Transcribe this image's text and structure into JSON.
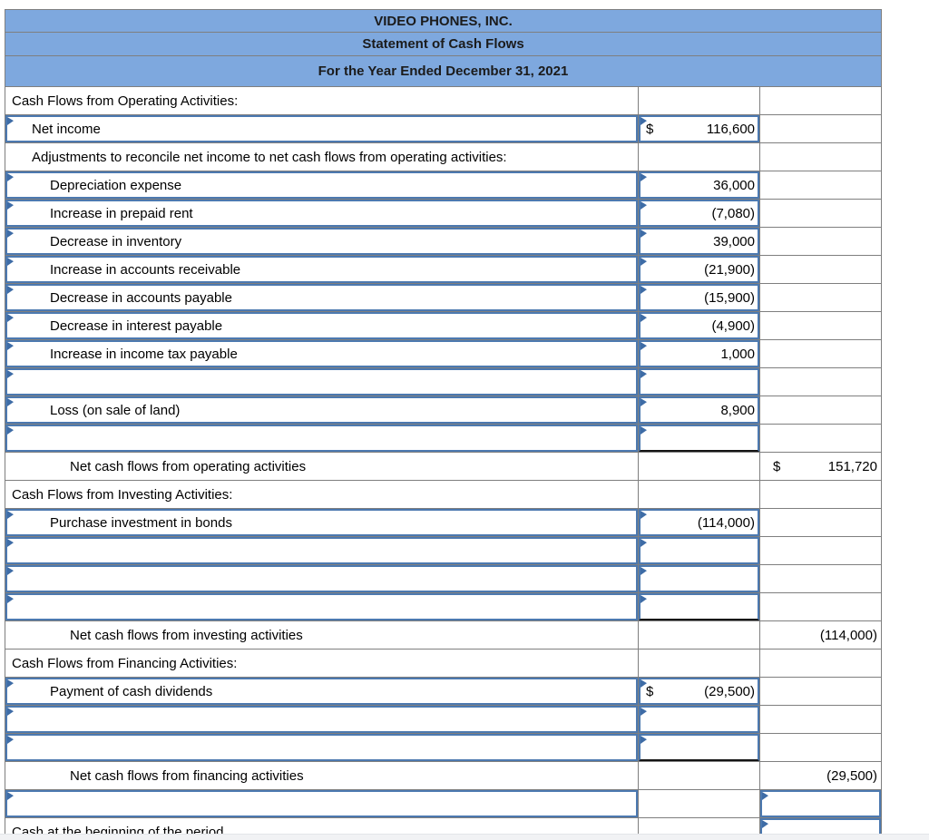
{
  "title_rows": [
    "VIDEO PHONES, INC.",
    "Statement of Cash Flows",
    "For the Year Ended December 31, 2021"
  ],
  "colors": {
    "header_bg": "#7EA8DE",
    "input_border_blue": "#4C79B0",
    "marker_blue": "#3E6CA6",
    "grid_gray": "#7f7f7f",
    "total_rule_black": "#141414",
    "footer_strip": "#F1F2F4"
  },
  "rows": [
    {
      "label": "Cash Flows from Operating Activities:",
      "indent": 0,
      "label_input": false,
      "c2": null,
      "c3": null
    },
    {
      "label": "Net income",
      "indent": 1,
      "label_input": true,
      "c2": {
        "input": true,
        "currency": "$",
        "value": "116,600"
      },
      "c3": null
    },
    {
      "label": "Adjustments to reconcile net income to net cash flows from operating activities:",
      "indent": 1,
      "label_input": false,
      "c2": null,
      "c3": null
    },
    {
      "label": "Depreciation expense",
      "indent": 2,
      "label_input": true,
      "c2": {
        "input": true,
        "value": "36,000"
      },
      "c3": null
    },
    {
      "label": "Increase in prepaid rent",
      "indent": 2,
      "label_input": true,
      "c2": {
        "input": true,
        "value": "(7,080)"
      },
      "c3": null
    },
    {
      "label": "Decrease in inventory",
      "indent": 2,
      "label_input": true,
      "c2": {
        "input": true,
        "value": "39,000"
      },
      "c3": null
    },
    {
      "label": "Increase in accounts receivable",
      "indent": 2,
      "label_input": true,
      "c2": {
        "input": true,
        "value": "(21,900)"
      },
      "c3": null
    },
    {
      "label": "Decrease in accounts payable",
      "indent": 2,
      "label_input": true,
      "c2": {
        "input": true,
        "value": "(15,900)"
      },
      "c3": null
    },
    {
      "label": "Decrease in interest payable",
      "indent": 2,
      "label_input": true,
      "c2": {
        "input": true,
        "value": "(4,900)"
      },
      "c3": null
    },
    {
      "label": "Increase in income tax payable",
      "indent": 2,
      "label_input": true,
      "c2": {
        "input": true,
        "value": "1,000"
      },
      "c3": null
    },
    {
      "label": "",
      "indent": 2,
      "label_input": true,
      "c2": {
        "input": true
      },
      "c3": null
    },
    {
      "label": "Loss (on sale of land)",
      "indent": 2,
      "label_input": true,
      "c2": {
        "input": true,
        "value": "8,900"
      },
      "c3": null
    },
    {
      "label": "",
      "indent": 2,
      "label_input": true,
      "c2": {
        "input": true,
        "black_bottom": true
      },
      "c3": null
    },
    {
      "label": "Net cash flows from operating activities",
      "indent": 3,
      "label_input": false,
      "c2": null,
      "c3": {
        "currency": "$",
        "value": "151,720"
      }
    },
    {
      "label": "Cash Flows from Investing Activities:",
      "indent": 0,
      "label_input": false,
      "c2": null,
      "c3": null
    },
    {
      "label": "Purchase investment in bonds",
      "indent": 2,
      "label_input": true,
      "c2": {
        "input": true,
        "value": "(114,000)"
      },
      "c3": null
    },
    {
      "label": "",
      "indent": 2,
      "label_input": true,
      "c2": {
        "input": true
      },
      "c3": null
    },
    {
      "label": "",
      "indent": 2,
      "label_input": true,
      "c2": {
        "input": true
      },
      "c3": null
    },
    {
      "label": "",
      "indent": 2,
      "label_input": true,
      "c2": {
        "input": true,
        "black_bottom": true
      },
      "c3": null
    },
    {
      "label": "Net cash flows from investing activities",
      "indent": 3,
      "label_input": false,
      "c2": null,
      "c3": {
        "value": "(114,000)"
      }
    },
    {
      "label": "Cash Flows from Financing Activities:",
      "indent": 0,
      "label_input": false,
      "c2": null,
      "c3": null
    },
    {
      "label": "Payment of cash dividends",
      "indent": 2,
      "label_input": true,
      "c2": {
        "input": true,
        "currency": "$",
        "value": "(29,500)"
      },
      "c3": null
    },
    {
      "label": "",
      "indent": 2,
      "label_input": true,
      "c2": {
        "input": true
      },
      "c3": null
    },
    {
      "label": "",
      "indent": 2,
      "label_input": true,
      "c2": {
        "input": true,
        "black_bottom": true
      },
      "c3": null
    },
    {
      "label": "Net cash flows from financing activities",
      "indent": 3,
      "label_input": false,
      "c2": null,
      "c3": {
        "value": "(29,500)",
        "black_bottom": true
      }
    },
    {
      "label": "",
      "indent": 0,
      "label_input": true,
      "c2": null,
      "c3": {
        "input": true
      }
    },
    {
      "label": "Cash at the beginning of the period",
      "indent": 0,
      "label_input": false,
      "c2": null,
      "c3": {
        "input": true
      }
    }
  ]
}
